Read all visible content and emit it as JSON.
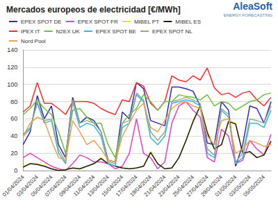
{
  "chart_data": {
    "type": "line",
    "title": "Mercados europeos de electricidad [€/MWh]",
    "annotations": [
      "AleaSoft",
      "ENERGY FORECASTING"
    ],
    "categories": [
      "01/04/2024",
      null,
      "03/04/2024",
      null,
      "05/04/2024",
      null,
      "07/04/2024",
      null,
      "09/04/2024",
      null,
      "11/04/2024",
      null,
      "13/04/2024",
      null,
      "15/04/2024",
      null,
      "17/04/2024",
      null,
      "19/04/2024",
      null,
      "21/04/2024",
      null,
      "23/04/2024",
      null,
      "25/04/2024",
      null,
      "27/04/2024",
      null,
      "29/04/2024",
      null,
      "01/05/2024",
      null,
      "03/05/2024",
      null,
      "05/05/2024",
      null
    ],
    "series": [
      {
        "name": "EPEX SPOT DE",
        "color": "#2a2ab8",
        "values": [
          30,
          45,
          87,
          60,
          75,
          30,
          15,
          85,
          55,
          62,
          58,
          45,
          12,
          10,
          68,
          60,
          102,
          95,
          58,
          55,
          52,
          97,
          97,
          95,
          92,
          75,
          32,
          30,
          80,
          70,
          5,
          30,
          75,
          72,
          55,
          80
        ]
      },
      {
        "name": "EPEX SPOT FR",
        "color": "#e63cc8",
        "values": [
          15,
          20,
          15,
          10,
          5,
          2,
          0,
          8,
          18,
          15,
          10,
          10,
          8,
          2,
          5,
          20,
          60,
          20,
          15,
          2,
          10,
          55,
          75,
          80,
          70,
          62,
          15,
          10,
          48,
          40,
          8,
          12,
          35,
          25,
          18,
          42
        ]
      },
      {
        "name": "MIBEL PT",
        "color": "#f2e600",
        "values": [
          5,
          8,
          8,
          5,
          2,
          0,
          1,
          3,
          2,
          5,
          8,
          15,
          8,
          5,
          3,
          2,
          3,
          5,
          22,
          8,
          2,
          3,
          15,
          35,
          58,
          75,
          45,
          25,
          30,
          58,
          55,
          20,
          22,
          15,
          18,
          35
        ]
      },
      {
        "name": "MIBEL ES",
        "color": "#1a1a1a",
        "values": [
          4,
          8,
          7,
          5,
          2,
          0,
          1,
          3,
          2,
          5,
          8,
          14,
          8,
          5,
          3,
          2,
          3,
          5,
          21,
          8,
          2,
          3,
          15,
          35,
          57,
          75,
          44,
          25,
          30,
          57,
          54,
          20,
          22,
          15,
          18,
          34
        ]
      },
      {
        "name": "IPEX IT",
        "color": "#ff2a2a",
        "values": [
          68,
          75,
          102,
          78,
          78,
          72,
          65,
          80,
          80,
          80,
          78,
          72,
          68,
          65,
          82,
          80,
          102,
          98,
          78,
          70,
          80,
          110,
          105,
          103,
          110,
          105,
          119,
          96,
          88,
          90,
          85,
          90,
          92,
          82,
          75,
          85
        ]
      },
      {
        "name": "N2EX UK",
        "color": "#6cbf3c",
        "values": [
          65,
          72,
          82,
          72,
          65,
          45,
          20,
          70,
          72,
          62,
          55,
          55,
          30,
          15,
          55,
          65,
          72,
          88,
          80,
          70,
          80,
          80,
          88,
          86,
          85,
          82,
          88,
          75,
          80,
          78,
          70,
          75,
          80,
          82,
          88,
          90
        ]
      },
      {
        "name": "EPEX SPOT BE",
        "color": "#33b5e5",
        "values": [
          42,
          50,
          78,
          55,
          58,
          20,
          8,
          80,
          50,
          55,
          52,
          40,
          8,
          5,
          50,
          55,
          88,
          80,
          38,
          30,
          40,
          78,
          80,
          82,
          80,
          75,
          20,
          15,
          70,
          62,
          8,
          15,
          55,
          55,
          50,
          70
        ]
      },
      {
        "name": "EPEX SPOT NL",
        "color": "#9aa88a",
        "values": [
          40,
          48,
          80,
          58,
          60,
          25,
          10,
          82,
          55,
          58,
          55,
          45,
          10,
          8,
          55,
          58,
          90,
          82,
          45,
          35,
          45,
          80,
          82,
          85,
          82,
          78,
          25,
          18,
          72,
          65,
          10,
          20,
          60,
          58,
          55,
          75
        ]
      },
      {
        "name": "Nord Pool",
        "color": "#f0a050",
        "values": [
          40,
          55,
          62,
          58,
          35,
          15,
          12,
          58,
          45,
          30,
          35,
          25,
          12,
          10,
          40,
          55,
          70,
          78,
          50,
          45,
          58,
          72,
          78,
          80,
          75,
          72,
          40,
          30,
          58,
          60,
          20,
          25,
          35,
          32,
          28,
          30
        ]
      }
    ],
    "ylim": [
      0,
      140
    ],
    "yticks": [
      0,
      20,
      40,
      60,
      80,
      100,
      120,
      140
    ],
    "grid": true,
    "legend": "top-left"
  }
}
